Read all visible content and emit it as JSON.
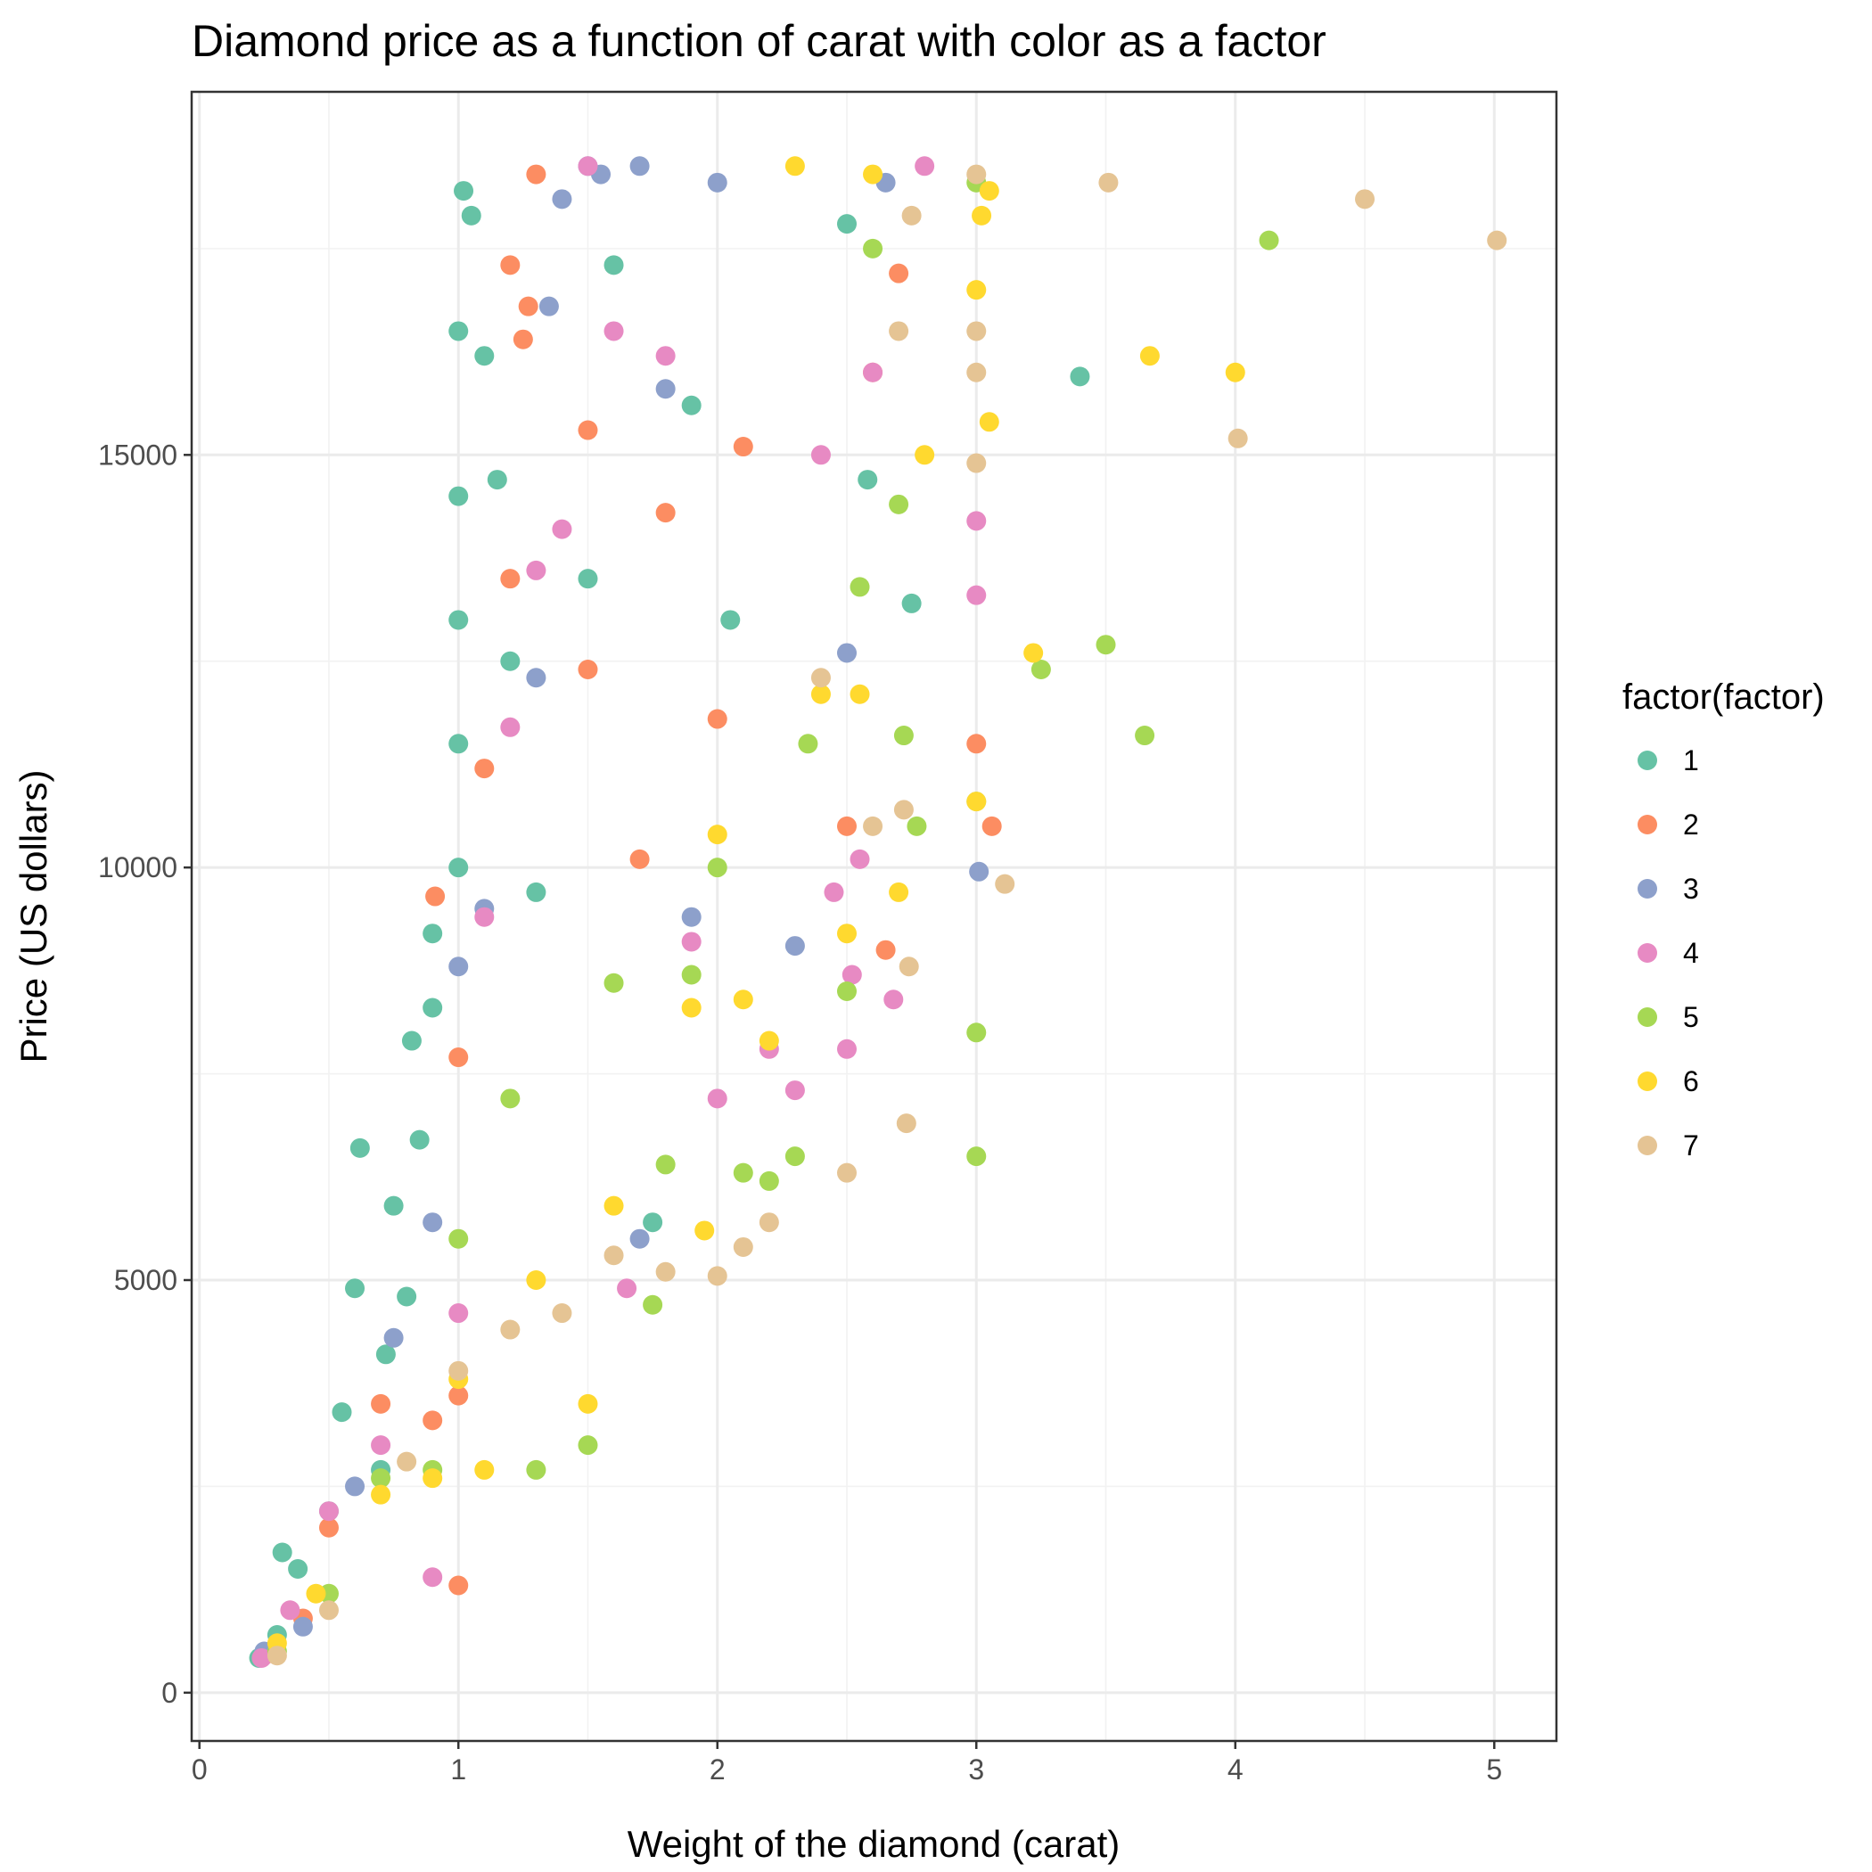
{
  "chart_data": {
    "type": "scatter",
    "title": "Diamond price as a function of carat with color as a factor",
    "xlabel": "Weight of the diamond (carat)",
    "ylabel": "Price (US dollars)",
    "xlim": [
      -0.03,
      5.24
    ],
    "ylim": [
      -585,
      19400
    ],
    "x_ticks": [
      0,
      1,
      2,
      3,
      4,
      5
    ],
    "x_tick_labels": [
      "0",
      "1",
      "2",
      "3",
      "4",
      "5"
    ],
    "y_ticks": [
      0,
      5000,
      10000,
      15000
    ],
    "y_tick_labels": [
      "0",
      "5000",
      "10000",
      "15000"
    ],
    "grid": true,
    "legend": {
      "title": "factor(factor)",
      "position": "right",
      "entries": [
        "1",
        "2",
        "3",
        "4",
        "5",
        "6",
        "7"
      ]
    },
    "palette": [
      "#66c2a5",
      "#fc8d62",
      "#8da0cb",
      "#e78ac3",
      "#a6d854",
      "#ffd92f",
      "#e5c494"
    ],
    "series": [
      {
        "name": "1",
        "color": "#66c2a5",
        "points": [
          [
            0.23,
            420
          ],
          [
            0.3,
            700
          ],
          [
            0.32,
            1700
          ],
          [
            0.38,
            1500
          ],
          [
            0.5,
            2200
          ],
          [
            0.55,
            3400
          ],
          [
            0.6,
            4900
          ],
          [
            0.62,
            6600
          ],
          [
            0.7,
            2700
          ],
          [
            0.72,
            4100
          ],
          [
            0.75,
            5900
          ],
          [
            0.8,
            4800
          ],
          [
            0.82,
            7900
          ],
          [
            0.85,
            6700
          ],
          [
            0.9,
            9200
          ],
          [
            0.9,
            8300
          ],
          [
            1.0,
            10000
          ],
          [
            1.0,
            11500
          ],
          [
            1.0,
            13000
          ],
          [
            1.0,
            14500
          ],
          [
            1.0,
            16500
          ],
          [
            1.02,
            18200
          ],
          [
            1.05,
            17900
          ],
          [
            1.1,
            16200
          ],
          [
            1.15,
            14700
          ],
          [
            1.2,
            12500
          ],
          [
            1.3,
            9700
          ],
          [
            1.5,
            13500
          ],
          [
            1.6,
            17300
          ],
          [
            1.75,
            5700
          ],
          [
            1.9,
            15600
          ],
          [
            2.05,
            13000
          ],
          [
            2.5,
            17800
          ],
          [
            2.58,
            14700
          ],
          [
            2.75,
            13200
          ],
          [
            3.4,
            15950
          ]
        ]
      },
      {
        "name": "2",
        "color": "#fc8d62",
        "points": [
          [
            0.25,
            450
          ],
          [
            0.4,
            900
          ],
          [
            0.5,
            2000
          ],
          [
            0.7,
            3500
          ],
          [
            0.9,
            3300
          ],
          [
            0.91,
            9650
          ],
          [
            1.0,
            3600
          ],
          [
            1.0,
            7700
          ],
          [
            1.0,
            1300
          ],
          [
            1.1,
            11200
          ],
          [
            1.2,
            13500
          ],
          [
            1.2,
            17300
          ],
          [
            1.25,
            16400
          ],
          [
            1.27,
            16800
          ],
          [
            1.3,
            18400
          ],
          [
            1.5,
            12400
          ],
          [
            1.5,
            15300
          ],
          [
            1.7,
            10100
          ],
          [
            1.8,
            14300
          ],
          [
            2.0,
            11800
          ],
          [
            2.1,
            15100
          ],
          [
            2.5,
            10500
          ],
          [
            2.6,
            16000
          ],
          [
            2.65,
            9000
          ],
          [
            2.7,
            17200
          ],
          [
            3.0,
            11500
          ],
          [
            3.06,
            10500
          ]
        ]
      },
      {
        "name": "3",
        "color": "#8da0cb",
        "points": [
          [
            0.25,
            500
          ],
          [
            0.4,
            800
          ],
          [
            0.6,
            2500
          ],
          [
            0.75,
            4300
          ],
          [
            0.9,
            5700
          ],
          [
            1.0,
            8800
          ],
          [
            1.1,
            9500
          ],
          [
            1.3,
            12300
          ],
          [
            1.35,
            16800
          ],
          [
            1.4,
            18100
          ],
          [
            1.5,
            18500
          ],
          [
            1.55,
            18400
          ],
          [
            1.7,
            18500
          ],
          [
            1.7,
            5500
          ],
          [
            1.8,
            15800
          ],
          [
            1.9,
            9400
          ],
          [
            2.0,
            18300
          ],
          [
            2.3,
            9050
          ],
          [
            2.5,
            12600
          ],
          [
            2.65,
            18300
          ],
          [
            3.01,
            9950
          ]
        ]
      },
      {
        "name": "4",
        "color": "#e78ac3",
        "points": [
          [
            0.24,
            420
          ],
          [
            0.35,
            1000
          ],
          [
            0.5,
            2200
          ],
          [
            0.7,
            3000
          ],
          [
            0.9,
            1400
          ],
          [
            1.0,
            4600
          ],
          [
            1.1,
            9400
          ],
          [
            1.2,
            11700
          ],
          [
            1.3,
            13600
          ],
          [
            1.4,
            14100
          ],
          [
            1.5,
            18500
          ],
          [
            1.6,
            16500
          ],
          [
            1.65,
            4900
          ],
          [
            1.8,
            16200
          ],
          [
            1.9,
            9100
          ],
          [
            2.0,
            7200
          ],
          [
            2.2,
            7800
          ],
          [
            2.3,
            7300
          ],
          [
            2.4,
            15000
          ],
          [
            2.45,
            9700
          ],
          [
            2.5,
            7800
          ],
          [
            2.52,
            8700
          ],
          [
            2.55,
            10100
          ],
          [
            2.6,
            16000
          ],
          [
            2.68,
            8400
          ],
          [
            2.8,
            18500
          ],
          [
            3.0,
            14200
          ],
          [
            3.0,
            13300
          ]
        ]
      },
      {
        "name": "5",
        "color": "#a6d854",
        "points": [
          [
            0.3,
            500
          ],
          [
            0.5,
            1200
          ],
          [
            0.7,
            2600
          ],
          [
            0.9,
            2700
          ],
          [
            1.0,
            5500
          ],
          [
            1.2,
            7200
          ],
          [
            1.3,
            2700
          ],
          [
            1.5,
            3000
          ],
          [
            1.6,
            8600
          ],
          [
            1.75,
            4700
          ],
          [
            1.8,
            6400
          ],
          [
            1.9,
            8700
          ],
          [
            2.0,
            10000
          ],
          [
            2.1,
            6300
          ],
          [
            2.2,
            6200
          ],
          [
            2.3,
            6500
          ],
          [
            2.35,
            11500
          ],
          [
            2.5,
            8500
          ],
          [
            2.55,
            13400
          ],
          [
            2.6,
            17500
          ],
          [
            2.7,
            14400
          ],
          [
            2.72,
            11600
          ],
          [
            2.77,
            10500
          ],
          [
            3.0,
            8000
          ],
          [
            3.0,
            6500
          ],
          [
            3.0,
            10800
          ],
          [
            3.0,
            18300
          ],
          [
            3.25,
            12400
          ],
          [
            3.5,
            12700
          ],
          [
            3.65,
            11600
          ],
          [
            4.13,
            17600
          ]
        ]
      },
      {
        "name": "6",
        "color": "#ffd92f",
        "points": [
          [
            0.3,
            600
          ],
          [
            0.45,
            1200
          ],
          [
            0.7,
            2400
          ],
          [
            0.9,
            2600
          ],
          [
            1.0,
            3800
          ],
          [
            1.1,
            2700
          ],
          [
            1.3,
            5000
          ],
          [
            1.5,
            3500
          ],
          [
            1.6,
            5900
          ],
          [
            1.9,
            8300
          ],
          [
            1.95,
            5600
          ],
          [
            2.0,
            10400
          ],
          [
            2.1,
            8400
          ],
          [
            2.2,
            7900
          ],
          [
            2.3,
            18500
          ],
          [
            2.4,
            12100
          ],
          [
            2.5,
            9200
          ],
          [
            2.55,
            12100
          ],
          [
            2.6,
            18400
          ],
          [
            2.7,
            9700
          ],
          [
            2.8,
            15000
          ],
          [
            3.0,
            10800
          ],
          [
            3.0,
            17000
          ],
          [
            3.02,
            17900
          ],
          [
            3.05,
            18200
          ],
          [
            3.05,
            15400
          ],
          [
            3.22,
            12600
          ],
          [
            3.67,
            16200
          ],
          [
            4.0,
            16000
          ]
        ]
      },
      {
        "name": "7",
        "color": "#e5c494",
        "points": [
          [
            0.3,
            450
          ],
          [
            0.5,
            1000
          ],
          [
            0.8,
            2800
          ],
          [
            1.0,
            3900
          ],
          [
            1.2,
            4400
          ],
          [
            1.4,
            4600
          ],
          [
            1.6,
            5300
          ],
          [
            1.8,
            5100
          ],
          [
            2.0,
            5050
          ],
          [
            2.1,
            5400
          ],
          [
            2.2,
            5700
          ],
          [
            2.4,
            12300
          ],
          [
            2.5,
            6300
          ],
          [
            2.6,
            10500
          ],
          [
            2.7,
            16500
          ],
          [
            2.72,
            10700
          ],
          [
            2.73,
            6900
          ],
          [
            2.74,
            8800
          ],
          [
            2.75,
            17900
          ],
          [
            3.0,
            16000
          ],
          [
            3.0,
            16500
          ],
          [
            3.0,
            14900
          ],
          [
            3.0,
            18400
          ],
          [
            3.11,
            9800
          ],
          [
            3.51,
            18300
          ],
          [
            4.01,
            15200
          ],
          [
            4.5,
            18100
          ],
          [
            5.01,
            17600
          ]
        ]
      }
    ]
  }
}
